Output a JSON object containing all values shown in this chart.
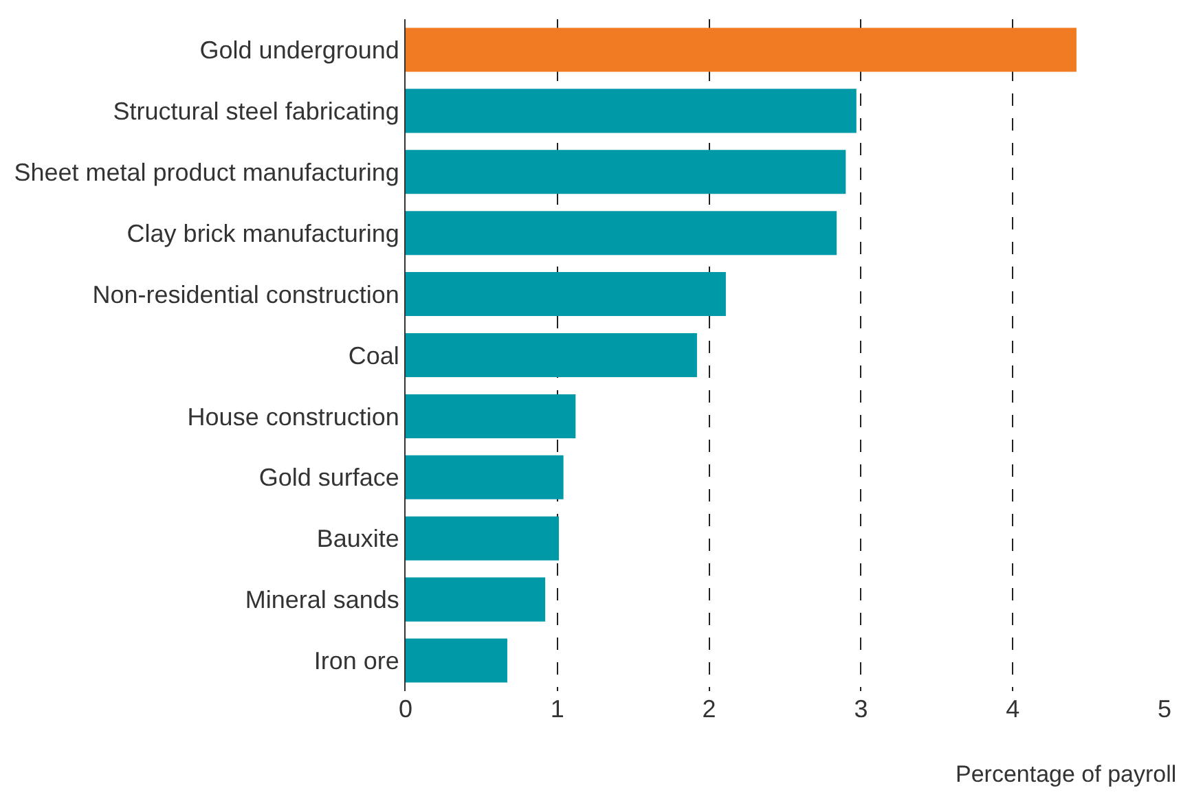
{
  "chart_data": {
    "type": "bar",
    "orientation": "horizontal",
    "categories": [
      "Gold underground",
      "Structural steel fabricating",
      "Sheet metal product manufacturing",
      "Clay brick manufacturing",
      "Non-residential construction",
      "Coal",
      "House construction",
      "Gold surface",
      "Bauxite",
      "Mineral sands",
      "Iron ore"
    ],
    "values": [
      4.42,
      2.97,
      2.9,
      2.84,
      2.11,
      1.92,
      1.12,
      1.04,
      1.01,
      0.92,
      0.67
    ],
    "colors": [
      "#f07b22",
      "#0099a8",
      "#0099a8",
      "#0099a8",
      "#0099a8",
      "#0099a8",
      "#0099a8",
      "#0099a8",
      "#0099a8",
      "#0099a8",
      "#0099a8"
    ],
    "xlabel": "Percentage of payroll",
    "xlim": [
      0,
      5
    ],
    "xticks": [
      0,
      1,
      2,
      3,
      4,
      5
    ],
    "grid": "x"
  }
}
